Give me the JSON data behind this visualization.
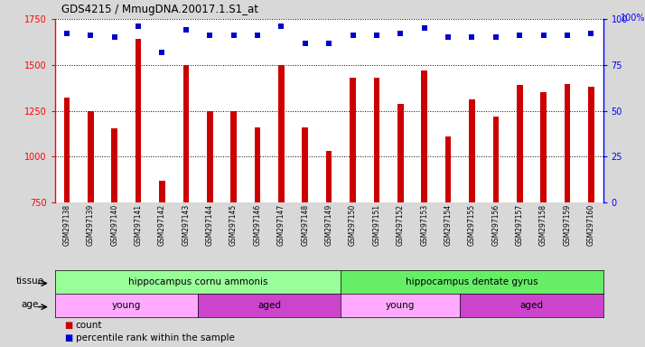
{
  "title": "GDS4215 / MmugDNA.20017.1.S1_at",
  "samples": [
    "GSM297138",
    "GSM297139",
    "GSM297140",
    "GSM297141",
    "GSM297142",
    "GSM297143",
    "GSM297144",
    "GSM297145",
    "GSM297146",
    "GSM297147",
    "GSM297148",
    "GSM297149",
    "GSM297150",
    "GSM297151",
    "GSM297152",
    "GSM297153",
    "GSM297154",
    "GSM297155",
    "GSM297156",
    "GSM297157",
    "GSM297158",
    "GSM297159",
    "GSM297160"
  ],
  "counts": [
    1320,
    1250,
    1155,
    1640,
    870,
    1500,
    1250,
    1250,
    1160,
    1500,
    1160,
    1030,
    1430,
    1430,
    1290,
    1470,
    1110,
    1310,
    1220,
    1390,
    1350,
    1395,
    1380
  ],
  "percentiles": [
    92,
    91,
    90,
    96,
    82,
    94,
    91,
    91,
    91,
    96,
    87,
    87,
    91,
    91,
    92,
    95,
    90,
    90,
    90,
    91,
    91,
    91,
    92
  ],
  "bar_color": "#cc0000",
  "dot_color": "#0000cc",
  "ylim_left": [
    750,
    1750
  ],
  "ylim_right": [
    0,
    100
  ],
  "yticks_left": [
    750,
    1000,
    1250,
    1500,
    1750
  ],
  "yticks_right": [
    0,
    25,
    50,
    75,
    100
  ],
  "tissue_groups": [
    {
      "label": "hippocampus cornu ammonis",
      "start": 0,
      "end": 12,
      "color": "#99ff99"
    },
    {
      "label": "hippocampus dentate gyrus",
      "start": 12,
      "end": 23,
      "color": "#66ee66"
    }
  ],
  "age_groups": [
    {
      "label": "young",
      "start": 0,
      "end": 6,
      "color": "#ffaaff"
    },
    {
      "label": "aged",
      "start": 6,
      "end": 12,
      "color": "#cc44cc"
    },
    {
      "label": "young",
      "start": 12,
      "end": 17,
      "color": "#ffaaff"
    },
    {
      "label": "aged",
      "start": 17,
      "end": 23,
      "color": "#cc44cc"
    }
  ],
  "tissue_label": "tissue",
  "age_label": "age",
  "legend_count": "count",
  "legend_percentile": "percentile rank within the sample",
  "background_color": "#d8d8d8",
  "plot_bg_color": "#ffffff"
}
